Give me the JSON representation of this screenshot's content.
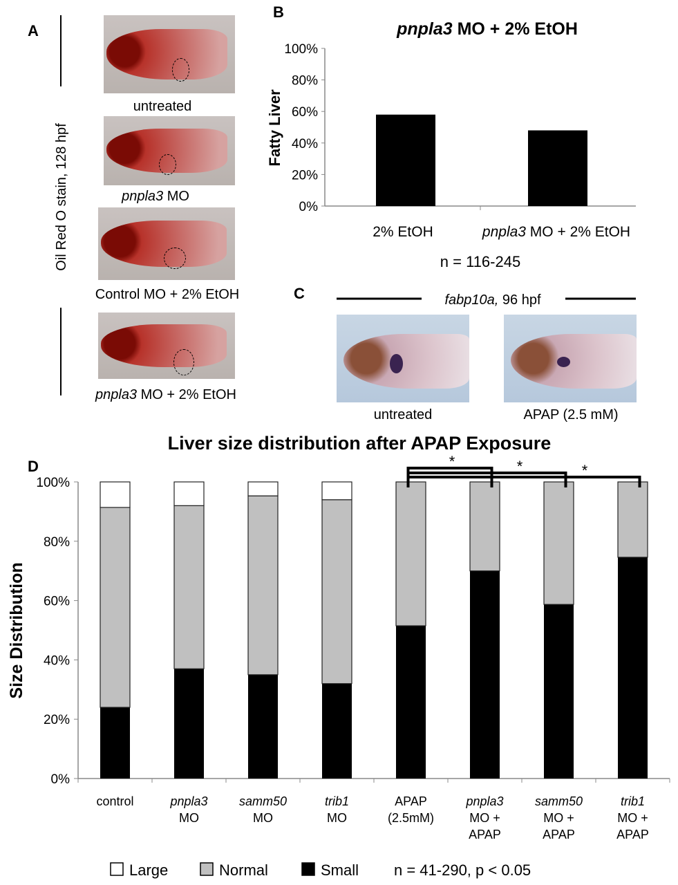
{
  "panel_a": {
    "letter": "A",
    "vertical_label": "Oil Red O stain, 128 hpf",
    "images": [
      {
        "label": "untreated"
      },
      {
        "label_italic": "pnpla3",
        "label": " MO"
      },
      {
        "label": "Control MO + 2% EtOH"
      },
      {
        "label_italic": "pnpla3",
        "label": " MO + 2% EtOH"
      }
    ]
  },
  "panel_c": {
    "letter": "C",
    "header_italic": "fabp10a,",
    "header": " 96 hpf",
    "images": [
      {
        "label": "untreated"
      },
      {
        "label": "APAP (2.5 mM)"
      }
    ]
  },
  "chart_data": [
    {
      "panel": "B",
      "type": "bar",
      "title_italic": "pnpla3",
      "title": " MO + 2% EtOH",
      "ylabel": "Fatty Liver",
      "ylim": [
        0,
        100
      ],
      "yticks": [
        "0%",
        "20%",
        "40%",
        "60%",
        "80%",
        "100%"
      ],
      "categories": [
        {
          "label": "2% EtOH"
        },
        {
          "italic": "pnpla3",
          "label": " MO + 2% EtOH"
        }
      ],
      "values": [
        58,
        48
      ],
      "note": "n = 116-245",
      "color": "#000000"
    },
    {
      "panel": "D",
      "type": "bar",
      "stacked": true,
      "title": "Liver size distribution after APAP Exposure",
      "ylabel": "Size Distribution",
      "ylim": [
        0,
        100
      ],
      "yticks": [
        "0%",
        "20%",
        "40%",
        "60%",
        "80%",
        "100%"
      ],
      "categories": [
        {
          "lines": [
            "control"
          ]
        },
        {
          "italic": "pnpla3",
          "lines": [
            "MO"
          ]
        },
        {
          "italic": "samm50",
          "lines": [
            "MO"
          ]
        },
        {
          "italic": "trib1",
          "lines": [
            "MO"
          ]
        },
        {
          "lines": [
            "APAP",
            "(2.5mM)"
          ]
        },
        {
          "italic": "pnpla3",
          "lines": [
            "MO +",
            "APAP"
          ]
        },
        {
          "italic": "samm50",
          "lines": [
            "MO +",
            "APAP"
          ]
        },
        {
          "italic": "trib1",
          "lines": [
            "MO +",
            "APAP"
          ]
        }
      ],
      "series": [
        {
          "name": "Small",
          "color": "#000000",
          "values": [
            24,
            37,
            35,
            32,
            51.5,
            70,
            58.7,
            74.6
          ]
        },
        {
          "name": "Normal",
          "color": "#c0c0c0",
          "values": [
            67.4,
            55,
            60.3,
            62,
            48.5,
            30,
            41.3,
            25.4
          ]
        },
        {
          "name": "Large",
          "color": "#ffffff",
          "values": [
            8.6,
            8,
            4.7,
            6,
            0,
            0,
            0,
            0
          ]
        }
      ],
      "significance": [
        {
          "from": 4,
          "to": 5,
          "label": "*"
        },
        {
          "from": 4,
          "to": 6,
          "label": "*"
        },
        {
          "from": 4,
          "to": 7,
          "label": "*"
        }
      ],
      "legend_position": "bottom",
      "note": "n = 41-290, p < 0.05"
    }
  ]
}
